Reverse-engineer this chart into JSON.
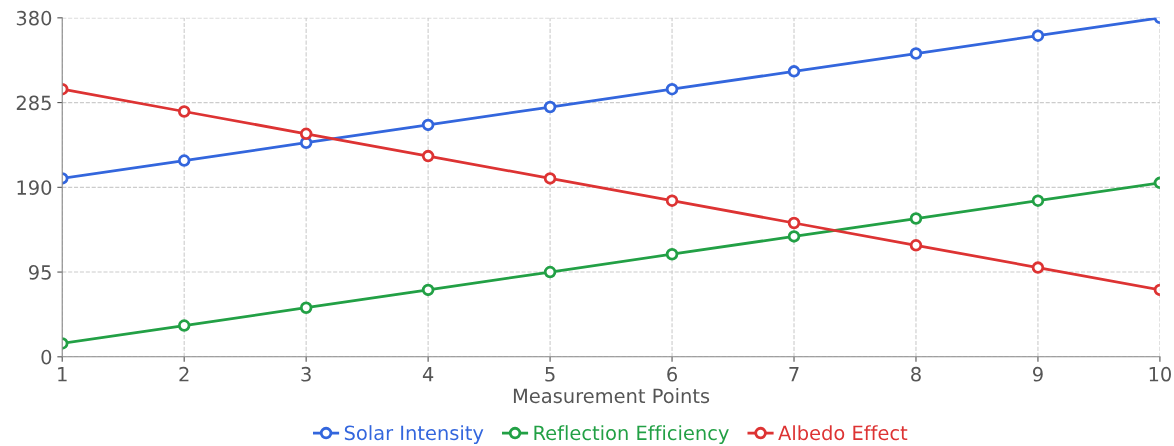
{
  "chart_data": {
    "type": "line",
    "xlabel": "Measurement Points",
    "x": [
      1,
      2,
      3,
      4,
      5,
      6,
      7,
      8,
      9,
      10
    ],
    "series": [
      {
        "name": "Solar Intensity",
        "color": "#3366dd",
        "values": [
          200,
          220,
          240,
          260,
          280,
          300,
          320,
          340,
          360,
          380
        ]
      },
      {
        "name": "Reflection Efficiency",
        "color": "#22a045",
        "values": [
          15,
          35,
          55,
          75,
          95,
          115,
          135,
          155,
          175,
          195
        ]
      },
      {
        "name": "Albedo Effect",
        "color": "#dd3333",
        "values": [
          300,
          275,
          250,
          225,
          200,
          175,
          150,
          125,
          100,
          75
        ]
      }
    ],
    "xlim": [
      1,
      10
    ],
    "xticks": [
      1,
      2,
      3,
      4,
      5,
      6,
      7,
      8,
      9,
      10
    ],
    "ylim": [
      0,
      380
    ],
    "yticks": [
      0,
      95,
      190,
      285,
      380
    ],
    "grid": true,
    "legend": "bottom",
    "marker": "circle",
    "line_style": "solid"
  }
}
